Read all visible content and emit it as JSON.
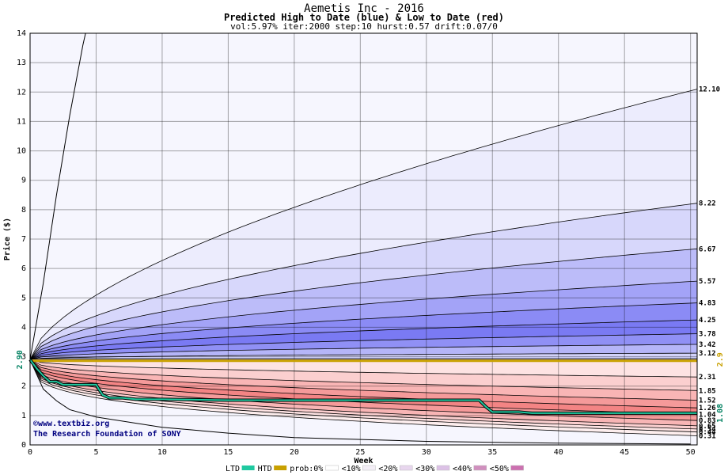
{
  "chart_data": {
    "type": "area",
    "title": "Aemetis Inc - 2016",
    "subtitle": "Predicted High to Date (blue) &  Low to Date (red)",
    "params": "vol:5.97% iter:2000 step:10 hurst:0.57 drift:0.07/0",
    "xlabel": "Week",
    "ylabel": "Price ($)",
    "xlim": [
      0,
      50.5
    ],
    "ylim": [
      0,
      14
    ],
    "xticks": [
      0,
      5,
      10,
      15,
      20,
      25,
      30,
      35,
      40,
      45,
      50
    ],
    "yticks": [
      0,
      1,
      2,
      3,
      4,
      5,
      6,
      7,
      8,
      9,
      10,
      11,
      12,
      13,
      14
    ],
    "grid": true,
    "start_price": "2.90",
    "right_start_label": "2.9",
    "right_last_label": "1.08",
    "upper_band_ends": [
      "12.10",
      "8.22",
      "6.67",
      "5.57",
      "4.83",
      "4.25",
      "3.78",
      "3.42",
      "3.12"
    ],
    "lower_band_ends": [
      "2.31",
      "1.85",
      "1.52",
      "1.26",
      "1.04",
      "0.83",
      "0.65",
      "0.54",
      "0.44",
      "0.31"
    ],
    "upper_values": [
      12.1,
      8.22,
      6.67,
      5.57,
      4.83,
      4.25,
      3.78,
      3.42,
      3.12
    ],
    "lower_values": [
      2.31,
      1.85,
      1.52,
      1.26,
      1.04,
      0.83,
      0.65,
      0.54,
      0.44,
      0.31
    ],
    "band_colors_upper": [
      "#ececfd",
      "#d7d7fb",
      "#bcbcf9",
      "#a3a3f7",
      "#8b8bf5",
      "#7a7af3",
      "#9090f5",
      "#b5b5f8",
      "#d2d2fa"
    ],
    "band_colors_lower": [
      "#fde3e3",
      "#fbcfcf",
      "#f9b5b5",
      "#f59a9a",
      "#f38484",
      "#f59a9a",
      "#f8b5b5",
      "#fbcfcf",
      "#fde3e3",
      "#fdeeee"
    ],
    "ltd_series": {
      "name": "LTD",
      "color": "#1fc9a0",
      "x": [
        0,
        0.5,
        1,
        1.5,
        2,
        2.5,
        3,
        4,
        5,
        5.2,
        5.5,
        6,
        7,
        8,
        10,
        15,
        20,
        25,
        30,
        32,
        33,
        34,
        34.5,
        35,
        37,
        38,
        40,
        45,
        50.5
      ],
      "y": [
        2.9,
        2.6,
        2.35,
        2.15,
        2.15,
        2.05,
        2.05,
        2.05,
        2.05,
        1.9,
        1.7,
        1.6,
        1.6,
        1.55,
        1.55,
        1.52,
        1.52,
        1.52,
        1.52,
        1.52,
        1.52,
        1.52,
        1.3,
        1.12,
        1.12,
        1.08,
        1.08,
        1.08,
        1.08
      ]
    },
    "htd_series": {
      "name": "HTD",
      "color": "#c8a000",
      "x": [
        0,
        50.5
      ],
      "y": [
        2.9,
        2.9
      ]
    },
    "outer_upper": {
      "x": [
        0,
        1,
        2,
        3,
        4,
        4.2
      ],
      "y": [
        2.9,
        5.5,
        8.5,
        11.2,
        13.6,
        14
      ]
    },
    "outer_lower": {
      "x": [
        0,
        1,
        2,
        3,
        5,
        10,
        15,
        20,
        30,
        40,
        50
      ],
      "y": [
        2.9,
        1.9,
        1.5,
        1.2,
        0.95,
        0.6,
        0.4,
        0.25,
        0.12,
        0.06,
        0.03
      ]
    },
    "watermark1": "©www.textbiz.org",
    "watermark2": "The Research Foundation of SONY",
    "legend": {
      "items": [
        "LTD",
        "HTD",
        "prob:0%",
        "<10%",
        "<20%",
        "<30%",
        "<40%",
        "<50%"
      ],
      "colors": [
        "#1fc9a0",
        "#c8a000",
        "#ffffff",
        "#f3eef6",
        "#e8d6ee",
        "#dcc1e6",
        "#d08fbe",
        "#cc70b0"
      ]
    }
  }
}
